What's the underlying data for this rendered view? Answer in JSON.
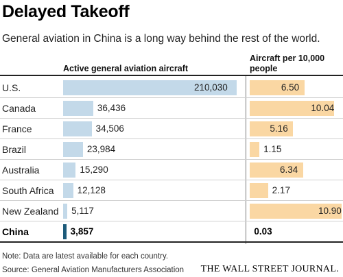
{
  "title": "Delayed Takeoff",
  "subtitle": "General aviation in China is a long way behind the rest of the world.",
  "note": "Note: Data are latest available for each country.",
  "source": "Source: General Aviation Manufacturers Association",
  "brand": "THE WALL STREET JOURNAL.",
  "colors": {
    "bar_a": "#c3d9e9",
    "bar_a_highlight": "#1d5b7a",
    "bar_b": "#fad7a3"
  },
  "chart_data": {
    "type": "bar",
    "categories": [
      "U.S.",
      "Canada",
      "France",
      "Brazil",
      "Australia",
      "South Africa",
      "New Zealand",
      "China"
    ],
    "highlight": "China",
    "series": [
      {
        "name": "Active general aviation aircraft",
        "values": [
          210030,
          36436,
          34506,
          23984,
          15290,
          12128,
          5117,
          3857
        ],
        "labels": [
          "210,030",
          "36,436",
          "34,506",
          "23,984",
          "15,290",
          "12,128",
          "5,117",
          "3,857"
        ]
      },
      {
        "name": "Aircraft per 10,000 people",
        "values": [
          6.5,
          10.04,
          5.16,
          1.15,
          6.34,
          2.17,
          10.9,
          0.03
        ],
        "labels": [
          "6.50",
          "10.04",
          "5.16",
          "1.15",
          "6.34",
          "2.17",
          "10.90",
          "0.03"
        ]
      }
    ]
  }
}
